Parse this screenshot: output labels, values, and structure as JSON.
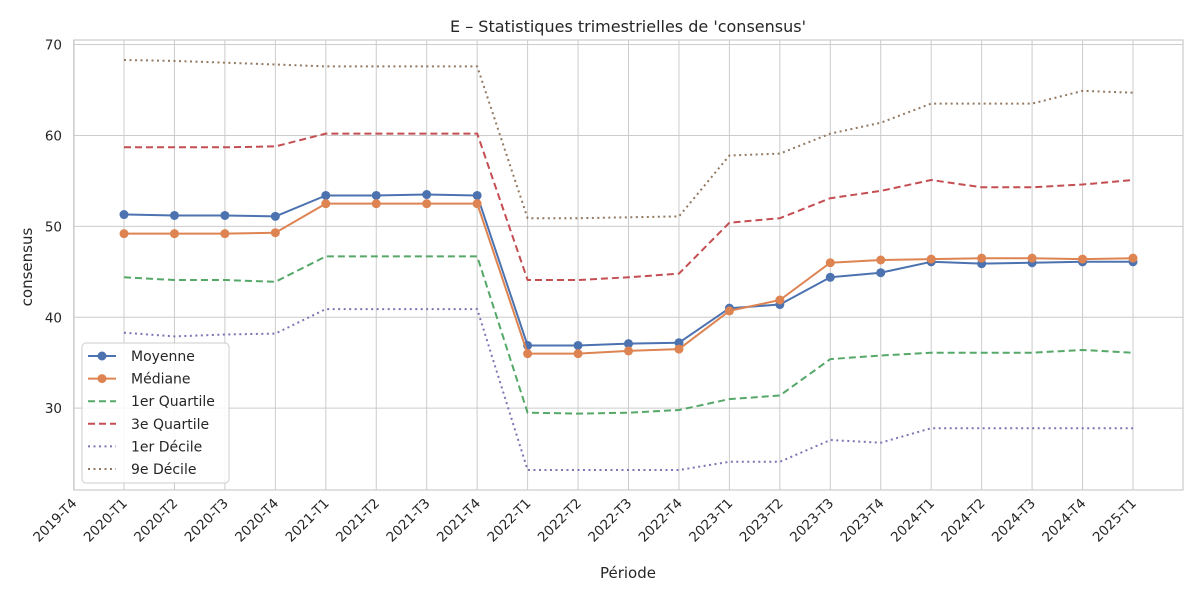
{
  "chart_data": {
    "type": "line",
    "title": "E – Statistiques trimestrielles de 'consensus'",
    "xlabel": "Période",
    "ylabel": "consensus",
    "categories": [
      "2019-T4",
      "2020-T1",
      "2020-T2",
      "2020-T3",
      "2020-T4",
      "2021-T1",
      "2021-T2",
      "2021-T3",
      "2021-T4",
      "2022-T1",
      "2022-T2",
      "2022-T3",
      "2022-T4",
      "2023-T1",
      "2023-T2",
      "2023-T3",
      "2023-T4",
      "2024-T1",
      "2024-T2",
      "2024-T3",
      "2024-T4",
      "2025-T1"
    ],
    "ylim": [
      21,
      70.5
    ],
    "yticks": [
      30,
      40,
      50,
      60,
      70
    ],
    "grid": true,
    "legend_position": "lower-left",
    "series": [
      {
        "name": "Moyenne",
        "color": "#4c72b0",
        "style": "solid",
        "marker": "circle",
        "values": [
          null,
          51.3,
          51.2,
          51.2,
          51.1,
          53.4,
          53.4,
          53.5,
          53.4,
          36.9,
          36.9,
          37.1,
          37.2,
          41.0,
          41.4,
          44.4,
          44.9,
          46.1,
          45.9,
          46.0,
          46.1,
          46.1
        ]
      },
      {
        "name": "Médiane",
        "color": "#dd8452",
        "style": "solid",
        "marker": "circle",
        "values": [
          null,
          49.2,
          49.2,
          49.2,
          49.3,
          52.5,
          52.5,
          52.5,
          52.5,
          36.0,
          36.0,
          36.3,
          36.5,
          40.7,
          41.9,
          46.0,
          46.3,
          46.4,
          46.5,
          46.5,
          46.4,
          46.5
        ]
      },
      {
        "name": "1er Quartile",
        "color": "#55a868",
        "style": "dashed",
        "marker": "none",
        "values": [
          null,
          44.4,
          44.1,
          44.1,
          43.9,
          46.7,
          46.7,
          46.7,
          46.7,
          29.5,
          29.4,
          29.5,
          29.8,
          31.0,
          31.4,
          35.4,
          35.8,
          36.1,
          36.1,
          36.1,
          36.4,
          36.1
        ]
      },
      {
        "name": "3e Quartile",
        "color": "#c44e52",
        "style": "dashed",
        "marker": "none",
        "values": [
          null,
          58.7,
          58.7,
          58.7,
          58.8,
          60.2,
          60.2,
          60.2,
          60.2,
          44.1,
          44.1,
          44.4,
          44.8,
          50.4,
          50.9,
          53.1,
          53.9,
          55.1,
          54.3,
          54.3,
          54.6,
          55.1
        ]
      },
      {
        "name": "1er Décile",
        "color": "#8172b3",
        "style": "dotted",
        "marker": "none",
        "values": [
          null,
          38.3,
          37.9,
          38.1,
          38.2,
          40.9,
          40.9,
          40.9,
          40.9,
          23.2,
          23.2,
          23.2,
          23.2,
          24.1,
          24.1,
          26.5,
          26.2,
          27.8,
          27.8,
          27.8,
          27.8,
          27.8
        ]
      },
      {
        "name": "9e Décile",
        "color": "#937860",
        "style": "dotted",
        "marker": "none",
        "values": [
          null,
          68.3,
          68.2,
          68.0,
          67.8,
          67.6,
          67.6,
          67.6,
          67.6,
          50.9,
          50.9,
          51.0,
          51.1,
          57.8,
          58.0,
          60.2,
          61.4,
          63.5,
          63.5,
          63.5,
          64.9,
          64.7
        ]
      }
    ]
  }
}
